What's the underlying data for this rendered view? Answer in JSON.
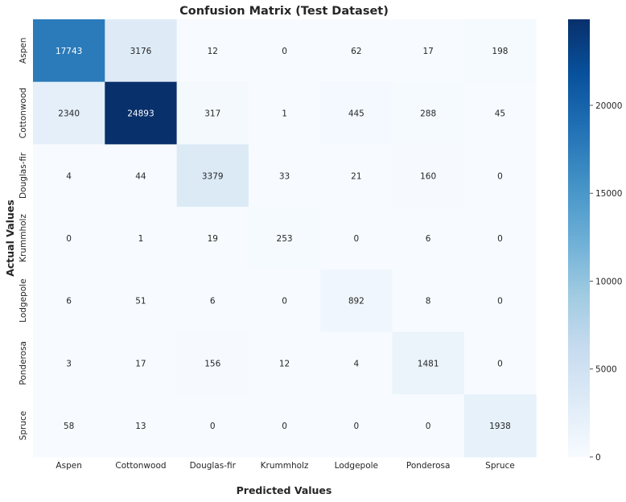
{
  "chart_data": {
    "type": "heatmap",
    "title": "Confusion Matrix (Test Dataset)",
    "xlabel": "Predicted Values",
    "ylabel": "Actual Values",
    "x_categories": [
      "Aspen",
      "Cottonwood",
      "Douglas-fir",
      "Krummholz",
      "Lodgepole",
      "Ponderosa",
      "Spruce"
    ],
    "y_categories": [
      "Aspen",
      "Cottonwood",
      "Douglas-fir",
      "Krummholz",
      "Lodgepole",
      "Ponderosa",
      "Spruce"
    ],
    "values": [
      [
        17743,
        3176,
        12,
        0,
        62,
        17,
        198
      ],
      [
        2340,
        24893,
        317,
        1,
        445,
        288,
        45
      ],
      [
        4,
        44,
        3379,
        33,
        21,
        160,
        0
      ],
      [
        0,
        1,
        19,
        253,
        0,
        6,
        0
      ],
      [
        6,
        51,
        6,
        0,
        892,
        8,
        0
      ],
      [
        3,
        17,
        156,
        12,
        4,
        1481,
        0
      ],
      [
        58,
        13,
        0,
        0,
        0,
        0,
        1938
      ]
    ],
    "colormap": "Blues",
    "color_range": [
      0,
      24893
    ],
    "colorbar": {
      "ticks": [
        0,
        5000,
        10000,
        15000,
        20000
      ],
      "tick_labels": [
        "0",
        "5000",
        "10000",
        "15000",
        "20000"
      ],
      "placement": "right"
    },
    "annotations_shown": true,
    "grid": false
  }
}
